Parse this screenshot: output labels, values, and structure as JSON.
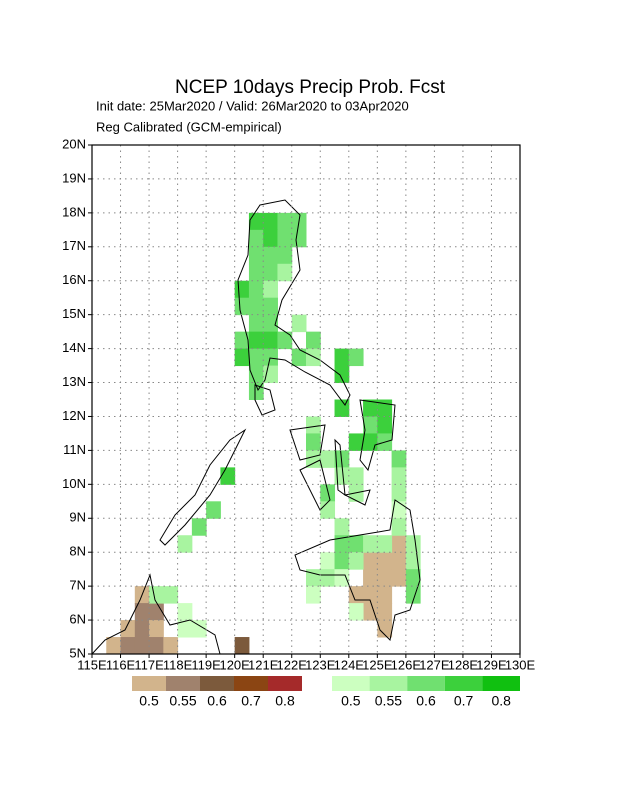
{
  "chart_data": {
    "type": "grid_map",
    "title": "NCEP 10days Precip Prob. Fcst",
    "subtitle": "Init date: 25Mar2020 / Valid: 26Mar2020 to 03Apr2020",
    "subtitle2": "Reg Calibrated (GCM-empirical)",
    "xlim": [
      115,
      130
    ],
    "ylim": [
      5,
      20
    ],
    "xticks": [
      {
        "value": 115,
        "label": "115E"
      },
      {
        "value": 116,
        "label": "116E"
      },
      {
        "value": 117,
        "label": "117E"
      },
      {
        "value": 118,
        "label": "118E"
      },
      {
        "value": 119,
        "label": "119E"
      },
      {
        "value": 120,
        "label": "120E"
      },
      {
        "value": 121,
        "label": "121E"
      },
      {
        "value": 122,
        "label": "122E"
      },
      {
        "value": 123,
        "label": "123E"
      },
      {
        "value": 124,
        "label": "124E"
      },
      {
        "value": 125,
        "label": "125E"
      },
      {
        "value": 126,
        "label": "126E"
      },
      {
        "value": 127,
        "label": "127E"
      },
      {
        "value": 128,
        "label": "128E"
      },
      {
        "value": 129,
        "label": "129E"
      },
      {
        "value": 130,
        "label": "130E"
      }
    ],
    "yticks": [
      {
        "value": 5,
        "label": "5N"
      },
      {
        "value": 6,
        "label": "6N"
      },
      {
        "value": 7,
        "label": "7N"
      },
      {
        "value": 8,
        "label": "8N"
      },
      {
        "value": 9,
        "label": "9N"
      },
      {
        "value": 10,
        "label": "10N"
      },
      {
        "value": 11,
        "label": "11N"
      },
      {
        "value": 12,
        "label": "12N"
      },
      {
        "value": 13,
        "label": "13N"
      },
      {
        "value": 14,
        "label": "14N"
      },
      {
        "value": 15,
        "label": "15N"
      },
      {
        "value": 16,
        "label": "16N"
      },
      {
        "value": 17,
        "label": "17N"
      },
      {
        "value": 18,
        "label": "18N"
      },
      {
        "value": 19,
        "label": "19N"
      },
      {
        "value": 20,
        "label": "20N"
      }
    ],
    "grid": true,
    "dry_levels": [
      0.5,
      0.55,
      0.6,
      0.7,
      0.8
    ],
    "dry_colors": [
      "#d2b48c",
      "#a0826d",
      "#7c5a3c",
      "#8b4513",
      "#a52a2a"
    ],
    "wet_levels": [
      0.5,
      0.55,
      0.6,
      0.7,
      0.8
    ],
    "wet_colors": [
      "#ccffc0",
      "#a8f4a0",
      "#70e070",
      "#3cd03c",
      "#10c010"
    ],
    "wet_cells": [
      [
        120.5,
        17.5,
        0.7
      ],
      [
        121,
        17.5,
        0.7
      ],
      [
        121.5,
        17.5,
        0.6
      ],
      [
        122,
        17.5,
        0.6
      ],
      [
        120.5,
        17,
        0.6
      ],
      [
        121,
        17,
        0.7
      ],
      [
        121.5,
        17,
        0.6
      ],
      [
        122,
        17,
        0.6
      ],
      [
        120.5,
        16.5,
        0.6
      ],
      [
        121,
        16.5,
        0.6
      ],
      [
        121.5,
        16.5,
        0.6
      ],
      [
        120.5,
        16,
        0.6
      ],
      [
        121,
        16,
        0.6
      ],
      [
        121.5,
        16,
        0.55
      ],
      [
        120,
        15.5,
        0.7
      ],
      [
        120.5,
        15.5,
        0.6
      ],
      [
        121,
        15.5,
        0.55
      ],
      [
        120,
        15,
        0.6
      ],
      [
        120.5,
        15,
        0.6
      ],
      [
        121,
        15,
        0.6
      ],
      [
        120.5,
        14.5,
        0.6
      ],
      [
        121,
        14.5,
        0.6
      ],
      [
        122,
        14.5,
        0.55
      ],
      [
        120,
        14,
        0.6
      ],
      [
        120.5,
        14,
        0.7
      ],
      [
        121,
        14,
        0.7
      ],
      [
        121.5,
        14,
        0.6
      ],
      [
        122.5,
        14,
        0.6
      ],
      [
        120,
        13.5,
        0.7
      ],
      [
        120.5,
        13.5,
        0.6
      ],
      [
        121,
        13.5,
        0.6
      ],
      [
        122,
        13.5,
        0.6
      ],
      [
        122.5,
        13.5,
        0.55
      ],
      [
        123.5,
        13.5,
        0.7
      ],
      [
        124,
        13.5,
        0.6
      ],
      [
        120.5,
        13,
        0.6
      ],
      [
        121,
        13,
        0.55
      ],
      [
        123.5,
        13,
        0.7
      ],
      [
        120.5,
        12.5,
        0.6
      ],
      [
        123.5,
        12,
        0.7
      ],
      [
        124.5,
        12,
        0.7
      ],
      [
        125,
        12,
        0.7
      ],
      [
        122.5,
        11.5,
        0.55
      ],
      [
        124.5,
        11.5,
        0.6
      ],
      [
        125,
        11.5,
        0.7
      ],
      [
        122.5,
        11,
        0.6
      ],
      [
        124,
        11,
        0.7
      ],
      [
        124.5,
        11,
        0.7
      ],
      [
        125,
        11,
        0.6
      ],
      [
        122.5,
        10.5,
        0.55
      ],
      [
        123,
        10.5,
        0.55
      ],
      [
        123.5,
        10.5,
        0.6
      ],
      [
        125.5,
        10.5,
        0.6
      ],
      [
        123.5,
        10,
        0.55
      ],
      [
        124,
        10,
        0.55
      ],
      [
        125.5,
        10,
        0.55
      ],
      [
        119.5,
        10,
        0.7
      ],
      [
        123,
        9.5,
        0.6
      ],
      [
        124,
        9.5,
        0.55
      ],
      [
        125.5,
        9.5,
        0.55
      ],
      [
        119,
        9,
        0.6
      ],
      [
        123,
        9,
        0.55
      ],
      [
        125.5,
        9,
        0.5
      ],
      [
        118.5,
        8.5,
        0.6
      ],
      [
        123.5,
        8.5,
        0.55
      ],
      [
        125.5,
        8.5,
        0.55
      ],
      [
        118,
        8,
        0.55
      ],
      [
        123.5,
        8,
        0.6
      ],
      [
        124,
        8,
        0.6
      ],
      [
        124.5,
        8,
        0.55
      ],
      [
        125,
        8,
        0.55
      ],
      [
        126,
        8,
        0.55
      ],
      [
        123,
        7.5,
        0.5
      ],
      [
        123.5,
        7.5,
        0.6
      ],
      [
        124,
        7.5,
        0.55
      ],
      [
        126,
        7.5,
        0.55
      ],
      [
        122.5,
        7,
        0.55
      ],
      [
        123,
        7,
        0.55
      ],
      [
        123.5,
        7,
        0.5
      ],
      [
        126,
        7,
        0.6
      ],
      [
        117,
        6.5,
        0.55
      ],
      [
        117.5,
        6.5,
        0.55
      ],
      [
        122.5,
        6.5,
        0.5
      ],
      [
        126,
        6.5,
        0.6
      ],
      [
        118,
        6,
        0.5
      ],
      [
        124,
        6,
        0.5
      ],
      [
        118,
        5.5,
        0.5
      ],
      [
        118.5,
        5.5,
        0.5
      ]
    ],
    "dry_cells": [
      [
        124.5,
        7.5,
        0.5
      ],
      [
        125,
        7.5,
        0.5
      ],
      [
        125.5,
        7.5,
        0.5
      ],
      [
        125.5,
        8,
        0.5
      ],
      [
        124.5,
        7,
        0.5
      ],
      [
        125,
        7,
        0.5
      ],
      [
        125.5,
        7,
        0.5
      ],
      [
        124,
        6.5,
        0.5
      ],
      [
        124.5,
        6.5,
        0.5
      ],
      [
        125,
        6.5,
        0.5
      ],
      [
        124.5,
        6,
        0.5
      ],
      [
        125,
        6,
        0.5
      ],
      [
        125,
        5.5,
        0.5
      ],
      [
        116.5,
        6.5,
        0.5
      ],
      [
        116.5,
        6,
        0.55
      ],
      [
        117,
        6,
        0.55
      ],
      [
        116,
        5.5,
        0.5
      ],
      [
        116.5,
        5.5,
        0.55
      ],
      [
        117,
        5.5,
        0.5
      ],
      [
        115.5,
        5,
        0.5
      ],
      [
        116,
        5,
        0.55
      ],
      [
        116.5,
        5,
        0.55
      ],
      [
        117,
        5,
        0.55
      ],
      [
        117.5,
        5,
        0.5
      ],
      [
        120,
        5,
        0.6
      ]
    ]
  }
}
